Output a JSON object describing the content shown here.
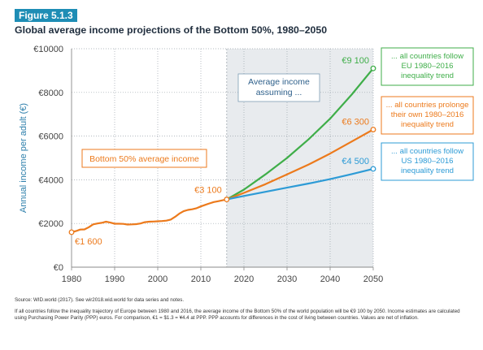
{
  "figure": {
    "badge": "Figure 5.1.3",
    "title": "Global average income projections of the Bottom 50%, 1980–2050"
  },
  "chart_data": {
    "type": "line",
    "ylabel": "Annual income per adult (€)",
    "xlabel": "",
    "xlim": [
      1980,
      2050
    ],
    "ylim": [
      0,
      10000
    ],
    "x_ticks": [
      "1980",
      "1990",
      "2000",
      "2010",
      "2020",
      "2030",
      "2040",
      "2050"
    ],
    "y_ticks": [
      "€0",
      "€2000",
      "€4000",
      "€6000",
      "€8000",
      "€10000"
    ],
    "grid": "dotted",
    "projection_start": 2016,
    "shaded_region": [
      2016,
      2050
    ],
    "shaded_label": [
      "Average income",
      "assuming ..."
    ],
    "historical_label": "Bottom 50% average income",
    "colors": {
      "historical": "#ec7a1c",
      "eu": "#3fae49",
      "own": "#ec7a1c",
      "us": "#2d9bd6",
      "shade": "#e8ebee",
      "axis": "#888888"
    },
    "historical": {
      "x": [
        1980,
        1981,
        1982,
        1983,
        1984,
        1985,
        1986,
        1987,
        1988,
        1989,
        1990,
        1991,
        1992,
        1993,
        1994,
        1995,
        1996,
        1997,
        1998,
        1999,
        2000,
        2001,
        2002,
        2003,
        2004,
        2005,
        2006,
        2007,
        2008,
        2009,
        2010,
        2011,
        2012,
        2013,
        2014,
        2015,
        2016
      ],
      "y": [
        1600,
        1650,
        1720,
        1730,
        1830,
        1960,
        2000,
        2030,
        2080,
        2040,
        1990,
        1990,
        1980,
        1950,
        1960,
        1970,
        2000,
        2060,
        2080,
        2090,
        2100,
        2110,
        2130,
        2180,
        2300,
        2450,
        2560,
        2620,
        2650,
        2700,
        2780,
        2850,
        2920,
        2980,
        3020,
        3060,
        3100
      ]
    },
    "series": [
      {
        "name": "EU",
        "x": [
          2016,
          2020,
          2025,
          2030,
          2035,
          2040,
          2045,
          2050
        ],
        "y": [
          3100,
          3550,
          4250,
          5000,
          5850,
          6800,
          7900,
          9100
        ]
      },
      {
        "name": "Own",
        "x": [
          2016,
          2020,
          2025,
          2030,
          2035,
          2040,
          2045,
          2050
        ],
        "y": [
          3100,
          3400,
          3800,
          4250,
          4700,
          5200,
          5750,
          6300
        ]
      },
      {
        "name": "US",
        "x": [
          2016,
          2020,
          2025,
          2030,
          2035,
          2040,
          2045,
          2050
        ],
        "y": [
          3100,
          3260,
          3450,
          3640,
          3830,
          4030,
          4260,
          4500
        ]
      }
    ],
    "point_labels": {
      "start": "€1 600",
      "mid": "€3 100",
      "eu": "€9 100",
      "own": "€6 300",
      "us": "€4 500"
    },
    "legend_boxes": {
      "eu": [
        "... all countries follow",
        "EU 1980–2016",
        "inequality trend"
      ],
      "own": [
        "... all countries prolonge",
        "their own 1980–2016",
        "inequality trend"
      ],
      "us": [
        "... all countries follow",
        "US 1980–2016",
        "inequality trend"
      ]
    }
  },
  "notes": {
    "source": "Source: WID.world (2017). See wir2018.wid.world for data series and notes.",
    "footnote": "If all countries follow the inequality trajectory of Europe between 1980 and 2016, the average income of the Bottom 50% of the world population will be €9 100 by 2050. Income estimates are calculated using Purchasing Power Parity (PPP) euros. For comparison, €1 = $1.3 = ¥4.4 at PPP. PPP accounts for differences in the cost of living between countries. Values are net of inflation."
  }
}
